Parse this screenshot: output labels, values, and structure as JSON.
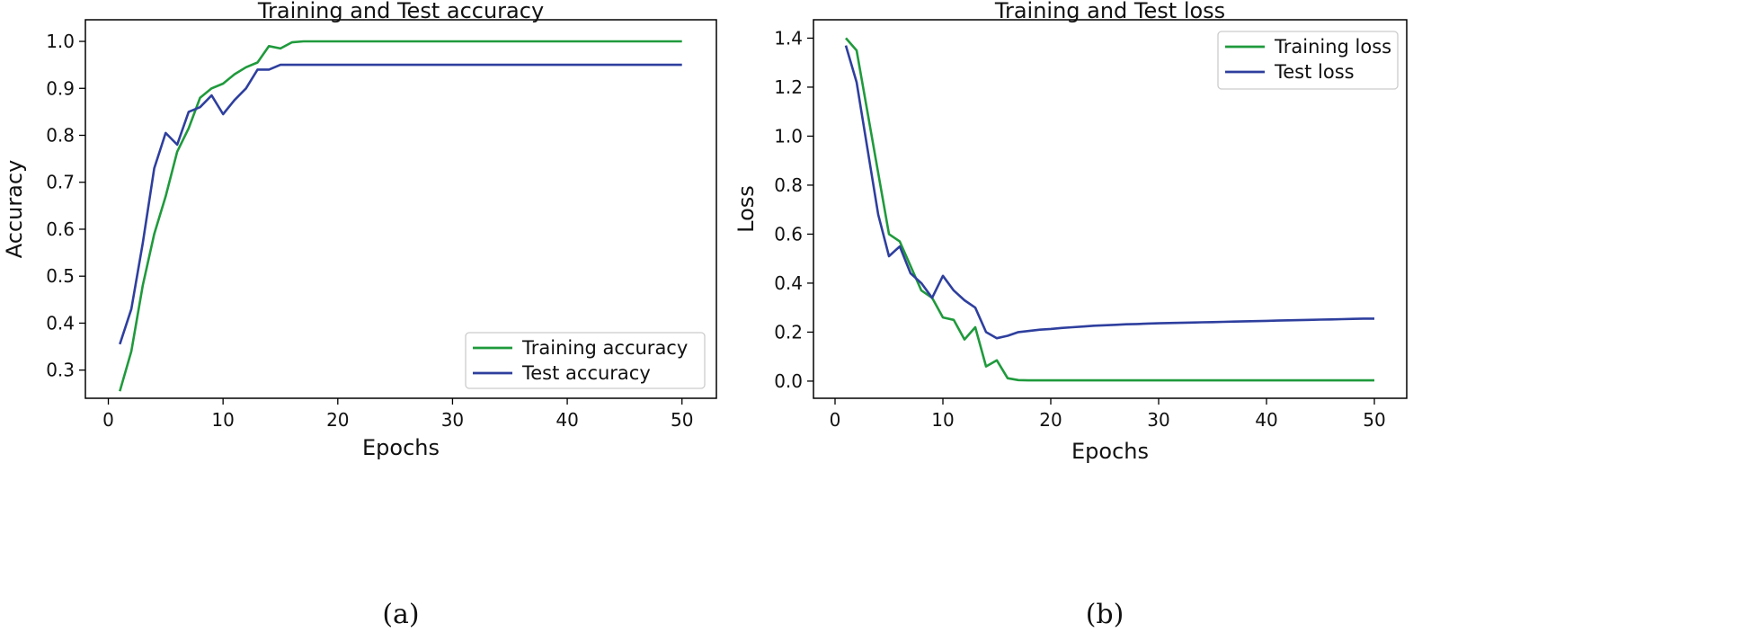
{
  "colors": {
    "training": "#1f9a3c",
    "test": "#2e3f9e"
  },
  "chart_data": [
    {
      "type": "line",
      "title": "Training and Test accuracy",
      "xlabel": "Epochs",
      "ylabel": "Accuracy",
      "caption": "(a)",
      "xlim": [
        -2,
        53
      ],
      "ylim": [
        0.24,
        1.046
      ],
      "xticks": [
        0,
        10,
        20,
        30,
        40,
        50
      ],
      "yticks": [
        0.3,
        0.4,
        0.5,
        0.6,
        0.7,
        0.8,
        0.9,
        1.0
      ],
      "ytick_labels": [
        "0.3",
        "0.4",
        "0.5",
        "0.6",
        "0.7",
        "0.8",
        "0.9",
        "1.0"
      ],
      "grid": false,
      "legend_position": "bottom-right",
      "x": [
        1,
        2,
        3,
        4,
        5,
        6,
        7,
        8,
        9,
        10,
        11,
        12,
        13,
        14,
        15,
        16,
        17,
        18,
        19,
        20,
        21,
        22,
        23,
        24,
        25,
        26,
        27,
        28,
        29,
        30,
        31,
        32,
        33,
        34,
        35,
        36,
        37,
        38,
        39,
        40,
        41,
        42,
        43,
        44,
        45,
        46,
        47,
        48,
        49,
        50
      ],
      "series": [
        {
          "name": "Training accuracy",
          "color_key": "training",
          "values": [
            0.255,
            0.34,
            0.48,
            0.59,
            0.67,
            0.765,
            0.815,
            0.88,
            0.9,
            0.91,
            0.93,
            0.945,
            0.955,
            0.99,
            0.985,
            0.998,
            1.0,
            1.0,
            1.0,
            1.0,
            1.0,
            1.0,
            1.0,
            1.0,
            1.0,
            1.0,
            1.0,
            1.0,
            1.0,
            1.0,
            1.0,
            1.0,
            1.0,
            1.0,
            1.0,
            1.0,
            1.0,
            1.0,
            1.0,
            1.0,
            1.0,
            1.0,
            1.0,
            1.0,
            1.0,
            1.0,
            1.0,
            1.0,
            1.0,
            1.0
          ]
        },
        {
          "name": "Test accuracy",
          "color_key": "test",
          "values": [
            0.355,
            0.43,
            0.57,
            0.73,
            0.805,
            0.78,
            0.85,
            0.86,
            0.885,
            0.845,
            0.875,
            0.9,
            0.94,
            0.94,
            0.95,
            0.95,
            0.95,
            0.95,
            0.95,
            0.95,
            0.95,
            0.95,
            0.95,
            0.95,
            0.95,
            0.95,
            0.95,
            0.95,
            0.95,
            0.95,
            0.95,
            0.95,
            0.95,
            0.95,
            0.95,
            0.95,
            0.95,
            0.95,
            0.95,
            0.95,
            0.95,
            0.95,
            0.95,
            0.95,
            0.95,
            0.95,
            0.95,
            0.95,
            0.95,
            0.95
          ]
        }
      ]
    },
    {
      "type": "line",
      "title": "Training and Test loss",
      "xlabel": "Epochs",
      "ylabel": "Loss",
      "caption": "(b)",
      "xlim": [
        -2,
        53
      ],
      "ylim": [
        -0.07,
        1.475
      ],
      "xticks": [
        0,
        10,
        20,
        30,
        40,
        50
      ],
      "yticks": [
        0.0,
        0.2,
        0.4,
        0.6,
        0.8,
        1.0,
        1.2,
        1.4
      ],
      "ytick_labels": [
        "0.0",
        "0.2",
        "0.4",
        "0.6",
        "0.8",
        "1.0",
        "1.2",
        "1.4"
      ],
      "grid": false,
      "legend_position": "top-right",
      "x": [
        1,
        2,
        3,
        4,
        5,
        6,
        7,
        8,
        9,
        10,
        11,
        12,
        13,
        14,
        15,
        16,
        17,
        18,
        19,
        20,
        21,
        22,
        23,
        24,
        25,
        26,
        27,
        28,
        29,
        30,
        31,
        32,
        33,
        34,
        35,
        36,
        37,
        38,
        39,
        40,
        41,
        42,
        43,
        44,
        45,
        46,
        47,
        48,
        49,
        50
      ],
      "series": [
        {
          "name": "Training loss",
          "color_key": "training",
          "values": [
            1.4,
            1.35,
            1.1,
            0.85,
            0.6,
            0.57,
            0.47,
            0.37,
            0.34,
            0.26,
            0.25,
            0.17,
            0.22,
            0.06,
            0.085,
            0.012,
            0.004,
            0.003,
            0.003,
            0.003,
            0.003,
            0.003,
            0.003,
            0.003,
            0.003,
            0.003,
            0.003,
            0.003,
            0.003,
            0.003,
            0.003,
            0.003,
            0.003,
            0.003,
            0.003,
            0.003,
            0.003,
            0.003,
            0.003,
            0.003,
            0.003,
            0.003,
            0.003,
            0.003,
            0.003,
            0.003,
            0.003,
            0.003,
            0.003,
            0.003
          ]
        },
        {
          "name": "Test loss",
          "color_key": "test",
          "values": [
            1.37,
            1.22,
            0.95,
            0.68,
            0.51,
            0.55,
            0.44,
            0.4,
            0.34,
            0.43,
            0.37,
            0.33,
            0.3,
            0.2,
            0.175,
            0.185,
            0.2,
            0.205,
            0.21,
            0.213,
            0.217,
            0.22,
            0.223,
            0.226,
            0.228,
            0.23,
            0.232,
            0.233,
            0.235,
            0.236,
            0.237,
            0.238,
            0.239,
            0.24,
            0.241,
            0.242,
            0.243,
            0.244,
            0.245,
            0.246,
            0.247,
            0.248,
            0.249,
            0.25,
            0.251,
            0.252,
            0.253,
            0.254,
            0.255,
            0.255
          ]
        }
      ]
    }
  ]
}
